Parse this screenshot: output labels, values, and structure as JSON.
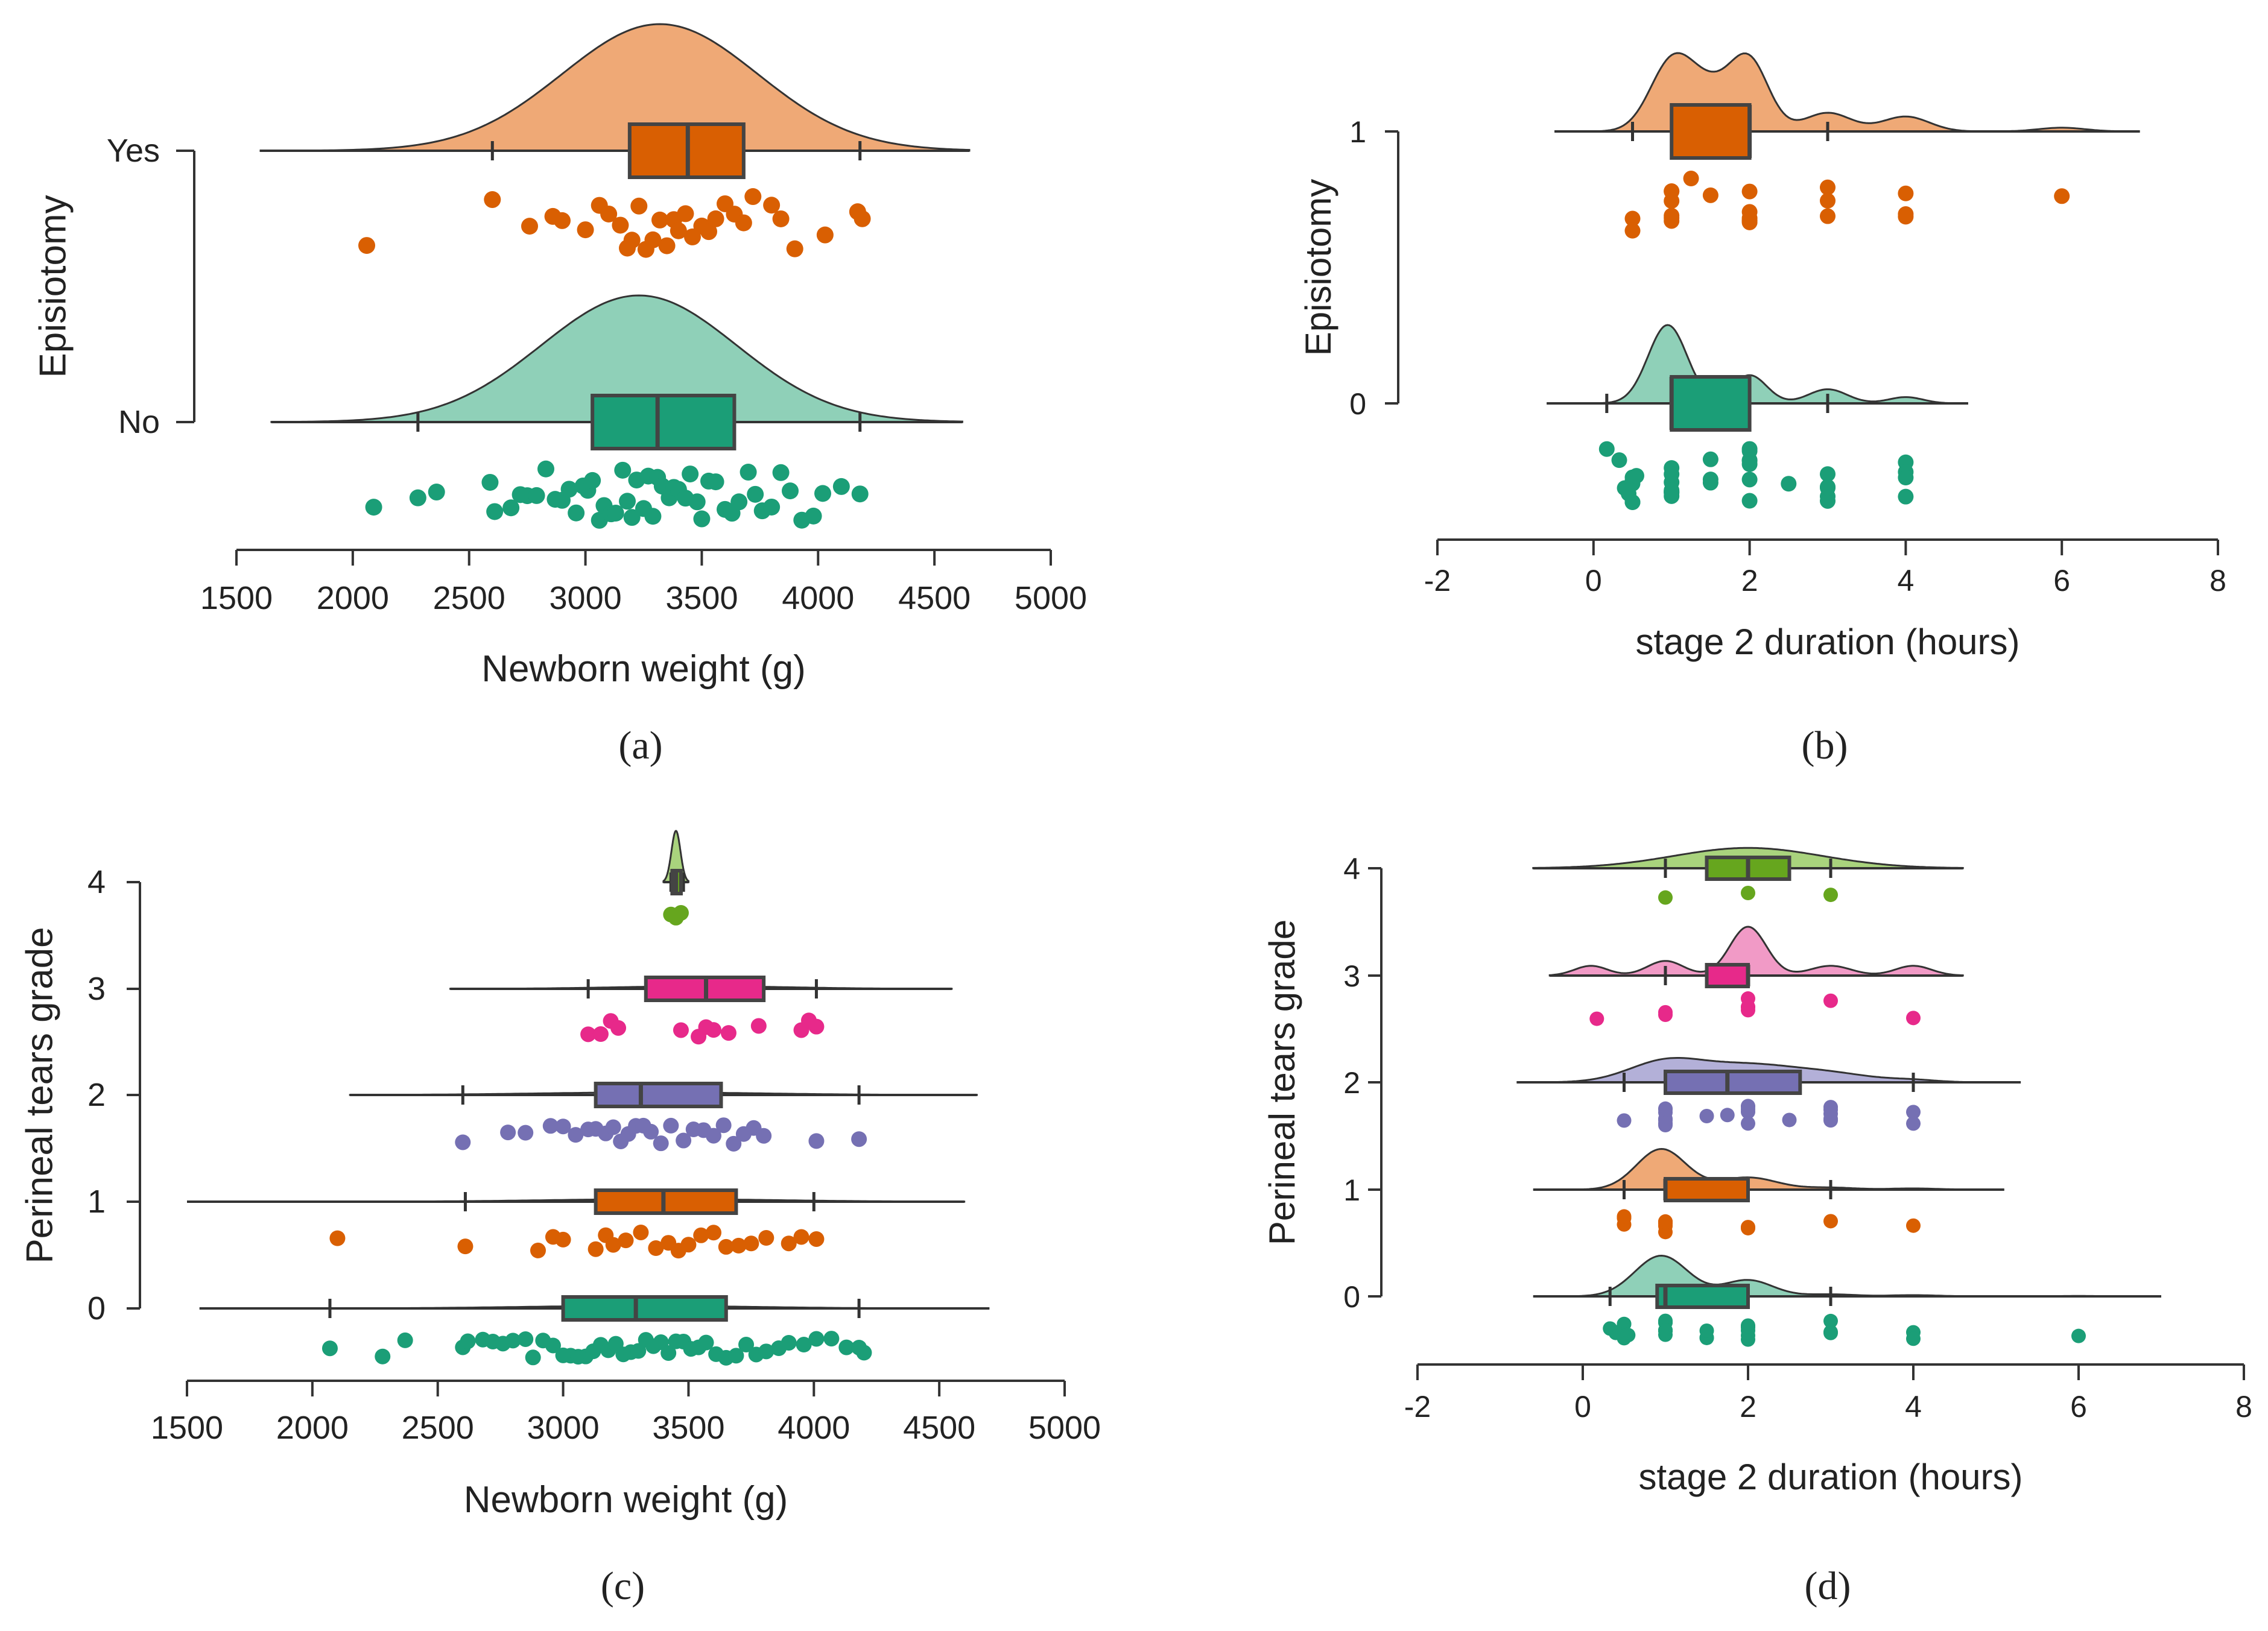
{
  "chart_data": [
    {
      "type": "raincloud",
      "panel_label": "(a)",
      "orientation": "horizontal",
      "xlabel": "Newborn weight (g)",
      "ylabel": "Episiotomy",
      "xlim": [
        1500,
        5000
      ],
      "xticks": [
        "1500",
        "2000",
        "2500",
        "3000",
        "3500",
        "4000",
        "4500",
        "5000"
      ],
      "groups": [
        {
          "name": "Yes",
          "color": "#d95f02",
          "cloud_color": "#efa976",
          "density": {
            "range": [
              1600,
              4650
            ],
            "peak": 3320,
            "spread": 420
          },
          "box": {
            "whisker_low": 2600,
            "q1": 3190,
            "median": 3440,
            "q3": 3680,
            "whisker_high": 4180
          },
          "points": [
            2060,
            2600,
            2760,
            2860,
            2900,
            3000,
            3060,
            3100,
            3150,
            3180,
            3200,
            3230,
            3260,
            3290,
            3320,
            3350,
            3380,
            3400,
            3430,
            3460,
            3500,
            3530,
            3560,
            3600,
            3640,
            3680,
            3720,
            3800,
            3840,
            3900,
            4030,
            4170,
            4190
          ]
        },
        {
          "name": "No",
          "color": "#1b9e77",
          "cloud_color": "#8fd0b8",
          "density": {
            "range": [
              1650,
              4620
            ],
            "peak": 3230,
            "spread": 420
          },
          "box": {
            "whisker_low": 2280,
            "q1": 3030,
            "median": 3310,
            "q3": 3640,
            "whisker_high": 4180
          },
          "points": [
            2090,
            2280,
            2360,
            2590,
            2610,
            2680,
            2720,
            2750,
            2790,
            2830,
            2870,
            2900,
            2930,
            2960,
            2990,
            3010,
            3030,
            3060,
            3080,
            3110,
            3130,
            3160,
            3180,
            3200,
            3220,
            3250,
            3270,
            3290,
            3310,
            3330,
            3360,
            3380,
            3400,
            3430,
            3450,
            3480,
            3500,
            3530,
            3560,
            3600,
            3630,
            3660,
            3700,
            3730,
            3760,
            3800,
            3840,
            3880,
            3930,
            3980,
            4020,
            4100,
            4180
          ]
        }
      ]
    },
    {
      "type": "raincloud",
      "panel_label": "(b)",
      "orientation": "horizontal",
      "xlabel": "stage 2 duration (hours)",
      "ylabel": "Episiotomy",
      "xlim": [
        -2,
        8
      ],
      "xticks": [
        "-2",
        "0",
        "2",
        "4",
        "6",
        "8"
      ],
      "groups": [
        {
          "name": "1",
          "color": "#d95f02",
          "cloud_color": "#efa976",
          "density": {
            "range": [
              -0.5,
              7
            ],
            "modes": [
              [
                1.0,
                0.9,
                0.28
              ],
              [
                2.0,
                0.9,
                0.25
              ],
              [
                1.5,
                0.5,
                0.3
              ],
              [
                3.0,
                0.25,
                0.3
              ],
              [
                4.0,
                0.2,
                0.3
              ],
              [
                6.0,
                0.05,
                0.3
              ]
            ]
          },
          "box": {
            "whisker_low": 0.5,
            "q1": 1.0,
            "median": 2.0,
            "q3": 2.0,
            "whisker_high": 3.0
          },
          "points": [
            0.5,
            0.5,
            1,
            1,
            1,
            1,
            1,
            1,
            1.25,
            1.5,
            2,
            2,
            2,
            2,
            2,
            2,
            3,
            3,
            3,
            4,
            4,
            4,
            6
          ]
        },
        {
          "name": "0",
          "color": "#1b9e77",
          "cloud_color": "#8fd0b8",
          "density": {
            "range": [
              -0.6,
              4.8
            ],
            "modes": [
              [
                0.95,
                1.0,
                0.25
              ],
              [
                2.0,
                0.36,
                0.22
              ],
              [
                3.0,
                0.18,
                0.25
              ],
              [
                4.0,
                0.08,
                0.22
              ]
            ]
          },
          "box": {
            "whisker_low": 0.17,
            "q1": 1.0,
            "median": 1.0,
            "q3": 2.0,
            "whisker_high": 3.0
          },
          "points": [
            0.17,
            0.33,
            0.4,
            0.45,
            0.5,
            0.5,
            0.5,
            0.5,
            0.5,
            0.55,
            1,
            1,
            1,
            1,
            1,
            1,
            1,
            1,
            1.5,
            1.5,
            1.5,
            2,
            2,
            2,
            2,
            2,
            2,
            2,
            2.5,
            3,
            3,
            3,
            3,
            3,
            4,
            4,
            4,
            4
          ]
        }
      ]
    },
    {
      "type": "raincloud",
      "panel_label": "(c)",
      "orientation": "horizontal",
      "xlabel": "Newborn weight (g)",
      "ylabel": "Perineal tears grade",
      "xlim": [
        1500,
        5000
      ],
      "xticks": [
        "1500",
        "2000",
        "2500",
        "3000",
        "3500",
        "4000",
        "4500",
        "5000"
      ],
      "groups": [
        {
          "name": "4",
          "color": "#66a61e",
          "cloud_color": "#a9d37d",
          "density": {
            "range": [
              3400,
              3500
            ],
            "peak": 3450,
            "spread": 18,
            "height": 1.0
          },
          "box": {
            "whisker_low": 3430,
            "q1": 3435,
            "median": 3450,
            "q3": 3470,
            "whisker_high": 3480
          },
          "points": [
            3430,
            3450,
            3470
          ]
        },
        {
          "name": "3",
          "color": "#e7298a",
          "cloud_color": "#f19ac6",
          "density": {
            "range": [
              2550,
              4550
            ],
            "peak": 3560,
            "spread": 350,
            "height": 0.05
          },
          "box": {
            "whisker_low": 3100,
            "q1": 3330,
            "median": 3570,
            "q3": 3800,
            "whisker_high": 4010
          },
          "points": [
            3100,
            3150,
            3190,
            3220,
            3470,
            3540,
            3570,
            3600,
            3660,
            3780,
            3950,
            3980,
            4010
          ]
        },
        {
          "name": "2",
          "color": "#7570b3",
          "cloud_color": "#b3b0d8",
          "density": {
            "range": [
              2150,
              4650
            ],
            "peak": 3350,
            "spread": 450,
            "height": 0.05
          },
          "box": {
            "whisker_low": 2600,
            "q1": 3130,
            "median": 3310,
            "q3": 3630,
            "whisker_high": 4180
          },
          "points": [
            2600,
            2780,
            2850,
            2950,
            3000,
            3050,
            3100,
            3130,
            3170,
            3200,
            3230,
            3260,
            3290,
            3320,
            3350,
            3390,
            3430,
            3480,
            3520,
            3560,
            3600,
            3640,
            3680,
            3720,
            3760,
            3800,
            4010,
            4180
          ]
        },
        {
          "name": "1",
          "color": "#d95f02",
          "cloud_color": "#efa976",
          "density": {
            "range": [
              1500,
              4600
            ],
            "peak": 3400,
            "spread": 450,
            "height": 0.05
          },
          "box": {
            "whisker_low": 2610,
            "q1": 3130,
            "median": 3400,
            "q3": 3690,
            "whisker_high": 4000
          },
          "points": [
            2100,
            2610,
            2900,
            2960,
            3000,
            3130,
            3170,
            3200,
            3250,
            3310,
            3370,
            3420,
            3460,
            3500,
            3550,
            3600,
            3650,
            3700,
            3750,
            3810,
            3900,
            3950,
            4010
          ]
        },
        {
          "name": "0",
          "color": "#1b9e77",
          "cloud_color": "#8fd0b8",
          "density": {
            "range": [
              1550,
              4700
            ],
            "peak": 3300,
            "spread": 450,
            "height": 0.05
          },
          "box": {
            "whisker_low": 2070,
            "q1": 3000,
            "median": 3290,
            "q3": 3650,
            "whisker_high": 4180
          },
          "points": [
            2070,
            2280,
            2370,
            2600,
            2620,
            2680,
            2720,
            2760,
            2800,
            2850,
            2880,
            2920,
            2960,
            3000,
            3030,
            3060,
            3090,
            3120,
            3150,
            3180,
            3210,
            3240,
            3270,
            3300,
            3330,
            3360,
            3390,
            3420,
            3450,
            3480,
            3510,
            3540,
            3570,
            3610,
            3650,
            3690,
            3730,
            3770,
            3810,
            3860,
            3900,
            3960,
            4010,
            4070,
            4130,
            4180,
            4200
          ]
        }
      ]
    },
    {
      "type": "raincloud",
      "panel_label": "(d)",
      "orientation": "horizontal",
      "xlabel": "stage 2 duration (hours)",
      "ylabel": "Perineal tears grade",
      "xlim": [
        -2,
        8
      ],
      "xticks": [
        "-2",
        "0",
        "2",
        "4",
        "6",
        "8"
      ],
      "groups": [
        {
          "name": "4",
          "color": "#66a61e",
          "cloud_color": "#a9d37d",
          "density": {
            "range": [
              -0.6,
              4.6
            ],
            "modes": [
              [
                2.0,
                1.0,
                0.9
              ]
            ],
            "height": 0.25
          },
          "box": {
            "whisker_low": 1.0,
            "q1": 1.5,
            "median": 2.0,
            "q3": 2.5,
            "whisker_high": 3.0
          },
          "points": [
            1,
            2,
            3
          ]
        },
        {
          "name": "3",
          "color": "#e7298a",
          "cloud_color": "#f19ac6",
          "density": {
            "range": [
              -0.4,
              4.6
            ],
            "modes": [
              [
                2.0,
                1.0,
                0.22
              ],
              [
                1.0,
                0.3,
                0.22
              ],
              [
                0.1,
                0.2,
                0.2
              ],
              [
                3.0,
                0.2,
                0.25
              ],
              [
                4.0,
                0.2,
                0.22
              ]
            ],
            "height": 0.6
          },
          "box": {
            "whisker_low": 1.0,
            "q1": 1.5,
            "median": 2.0,
            "q3": 2.0,
            "whisker_high": 2.0
          },
          "points": [
            0.17,
            1,
            1,
            2,
            2,
            2,
            2,
            3,
            4
          ]
        },
        {
          "name": "2",
          "color": "#7570b3",
          "cloud_color": "#b3b0d8",
          "density": {
            "range": [
              -0.8,
              5.3
            ],
            "modes": [
              [
                1.0,
                1.0,
                0.45
              ],
              [
                2.0,
                0.8,
                0.55
              ],
              [
                3.0,
                0.4,
                0.5
              ],
              [
                4.0,
                0.1,
                0.3
              ]
            ],
            "height": 0.3
          },
          "box": {
            "whisker_low": 0.5,
            "q1": 1.0,
            "median": 1.75,
            "q3": 2.63,
            "whisker_high": 4.0
          },
          "points": [
            0.5,
            1,
            1,
            1,
            1,
            1,
            1,
            1,
            1.5,
            1.75,
            2,
            2,
            2,
            2,
            2,
            2.5,
            3,
            3,
            3,
            3,
            3,
            4,
            4
          ]
        },
        {
          "name": "1",
          "color": "#d95f02",
          "cloud_color": "#efa976",
          "density": {
            "range": [
              -0.6,
              5.1
            ],
            "modes": [
              [
                0.95,
                1.0,
                0.3
              ],
              [
                2.0,
                0.3,
                0.35
              ],
              [
                3.0,
                0.05,
                0.3
              ],
              [
                4.0,
                0.03,
                0.3
              ]
            ],
            "height": 0.5
          },
          "box": {
            "whisker_low": 0.5,
            "q1": 1.0,
            "median": 1.0,
            "q3": 2.0,
            "whisker_high": 3.0
          },
          "points": [
            0.5,
            0.5,
            0.5,
            1,
            1,
            1,
            1,
            1,
            1,
            2,
            2,
            3,
            4
          ]
        },
        {
          "name": "0",
          "color": "#1b9e77",
          "cloud_color": "#8fd0b8",
          "density": {
            "range": [
              -0.6,
              7.0
            ],
            "modes": [
              [
                0.95,
                1.0,
                0.32
              ],
              [
                2.0,
                0.4,
                0.3
              ],
              [
                3.0,
                0.05,
                0.3
              ],
              [
                4.0,
                0.03,
                0.3
              ],
              [
                6.0,
                0.01,
                0.3
              ]
            ],
            "height": 0.5
          },
          "box": {
            "whisker_low": 0.33,
            "q1": 0.9,
            "median": 1.0,
            "q3": 2.0,
            "whisker_high": 3.0
          },
          "points": [
            0.33,
            0.4,
            0.45,
            0.5,
            0.5,
            0.5,
            0.5,
            0.5,
            0.55,
            1,
            1,
            1,
            1,
            1,
            1,
            1,
            1,
            1,
            1.5,
            1.5,
            1.5,
            2,
            2,
            2,
            2,
            2,
            2,
            3,
            3,
            3,
            4,
            4,
            6
          ]
        }
      ]
    }
  ]
}
